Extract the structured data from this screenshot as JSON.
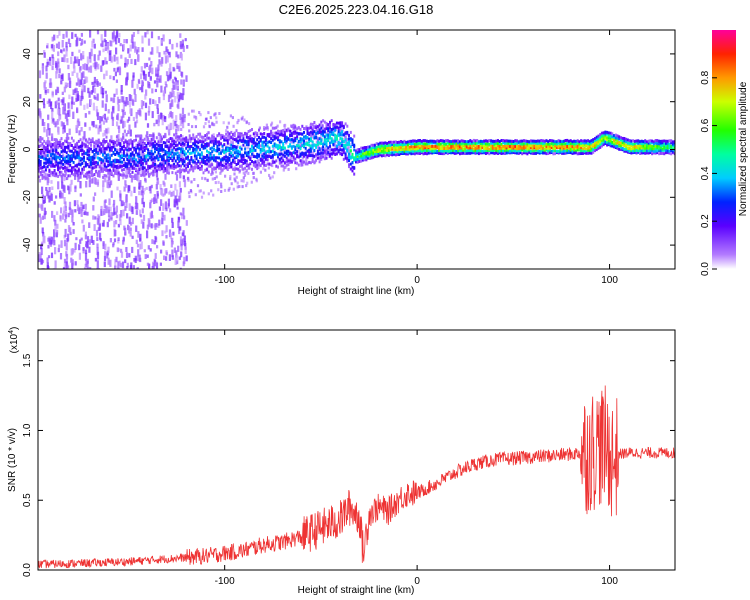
{
  "title": "C2E6.2025.223.04.16.G18",
  "chart_data": [
    {
      "type": "heatmap",
      "xlabel": "Height of straight line (km)",
      "ylabel": "Frequency (Hz)",
      "xlim": [
        -197,
        134
      ],
      "ylim": [
        -50,
        50
      ],
      "xticks": [
        -100,
        0,
        100
      ],
      "yticks": [
        -40,
        -20,
        0,
        20,
        40
      ],
      "colorbar": {
        "label": "Normalized spectral amplitude",
        "range": [
          0,
          1
        ],
        "ticks": [
          "0.0",
          "0.2",
          "0.4",
          "0.6",
          "0.8"
        ]
      },
      "ridge": [
        {
          "x": -197,
          "freq": -4,
          "amp": 0.3
        },
        {
          "x": -150,
          "freq": -3,
          "amp": 0.33
        },
        {
          "x": -100,
          "freq": -1,
          "amp": 0.37
        },
        {
          "x": -60,
          "freq": 2,
          "amp": 0.42
        },
        {
          "x": -40,
          "freq": 5,
          "amp": 0.46
        },
        {
          "x": -33,
          "freq": -3,
          "amp": 0.55
        },
        {
          "x": -20,
          "freq": 0,
          "amp": 0.8
        },
        {
          "x": 0,
          "freq": 1,
          "amp": 0.9
        },
        {
          "x": 50,
          "freq": 1,
          "amp": 0.92
        },
        {
          "x": 90,
          "freq": 1,
          "amp": 0.88
        },
        {
          "x": 97,
          "freq": 5,
          "amp": 0.75
        },
        {
          "x": 110,
          "freq": 1,
          "amp": 0.85
        },
        {
          "x": 134,
          "freq": 1,
          "amp": 0.55
        }
      ]
    },
    {
      "type": "line",
      "xlabel": "Height of straight line (km)",
      "ylabel": "SNR (10 * v/v)",
      "ymultiplier": "(x10",
      "ymultiplier_exp": "4",
      "ymultiplier_close": ")",
      "xlim": [
        -197,
        134
      ],
      "ylim": [
        0,
        1.72
      ],
      "xticks": [
        -100,
        0,
        100
      ],
      "yticks": [
        "0.0",
        "0.5",
        "1.0",
        "1.5"
      ],
      "series": [
        {
          "color": "#ee3333",
          "x": [
            -197,
            -170,
            -150,
            -130,
            -110,
            -90,
            -80,
            -70,
            -60,
            -50,
            -40,
            -35,
            -30,
            -28,
            -25,
            -20,
            -15,
            -10,
            -5,
            0,
            10,
            20,
            30,
            40,
            50,
            60,
            70,
            80,
            90,
            95,
            100,
            102,
            105,
            110,
            120,
            134
          ],
          "y": [
            0.04,
            0.05,
            0.06,
            0.08,
            0.1,
            0.14,
            0.18,
            0.2,
            0.24,
            0.3,
            0.36,
            0.45,
            0.38,
            0.12,
            0.4,
            0.45,
            0.42,
            0.5,
            0.55,
            0.55,
            0.62,
            0.7,
            0.76,
            0.79,
            0.8,
            0.81,
            0.82,
            0.83,
            0.85,
            0.9,
            0.85,
            0.78,
            0.83,
            0.84,
            0.84,
            0.84
          ]
        }
      ]
    }
  ]
}
